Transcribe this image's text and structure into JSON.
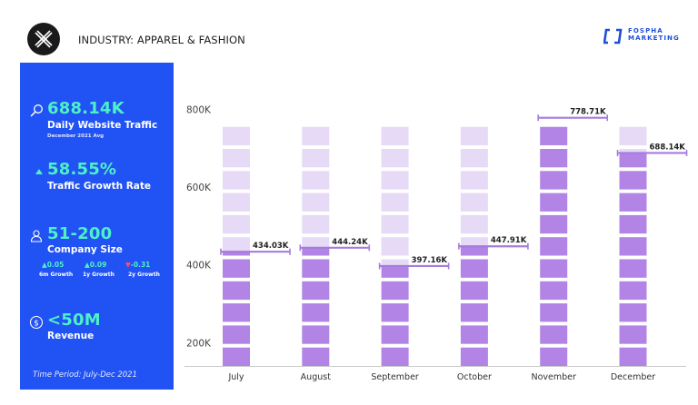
{
  "header": {
    "industry_label": "INDUSTRY: APPAREL & FASHION",
    "brand_line1": "FOSPHA",
    "brand_line2": "MARKETING",
    "brand_color": "#1f4fd8"
  },
  "sidebar": {
    "background": "#2152f3",
    "accent": "#4df0c8",
    "traffic": {
      "icon": "search-icon",
      "value": "688.14K",
      "label": "Daily Website Traffic",
      "sub": "December 2021 Avg"
    },
    "growth": {
      "icon": "triangle-up-icon",
      "value": "58.55%",
      "label": "Traffic Growth Rate"
    },
    "company": {
      "icon": "users-icon",
      "value": "51-200",
      "label": "Company Size",
      "growth": [
        {
          "value": "0.05",
          "label": "6m Growth",
          "direction": "up"
        },
        {
          "value": "0.09",
          "label": "1y Growth",
          "direction": "up"
        },
        {
          "value": "-0.31",
          "label": "2y Growth",
          "direction": "down"
        }
      ]
    },
    "revenue": {
      "icon": "dollar-icon",
      "value": "<50M",
      "label": "Revenue"
    },
    "time_period": "Time Period: July-Dec 2021"
  },
  "chart_data": {
    "type": "bar",
    "categories": [
      "July",
      "August",
      "September",
      "October",
      "November",
      "December"
    ],
    "values": [
      434030,
      444240,
      397160,
      447910,
      778710,
      688140
    ],
    "value_labels": [
      "434.03K",
      "444.24K",
      "397.16K",
      "447.91K",
      "778.71K",
      "688.14K"
    ],
    "yticks": [
      200000,
      400000,
      600000,
      800000
    ],
    "ytick_labels": [
      "200K",
      "400K",
      "600K",
      "800K"
    ],
    "ylim": [
      140000,
      820000
    ],
    "grid": false,
    "colors": {
      "filled": "#b184e6",
      "empty": "#e6daf7",
      "marker": "#a57bde"
    }
  }
}
